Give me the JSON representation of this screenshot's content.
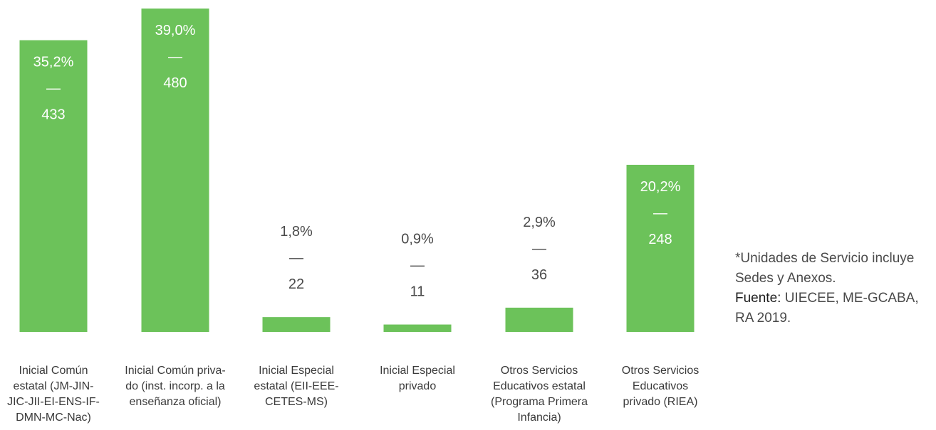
{
  "chart_data": {
    "type": "bar",
    "categories": [
      [
        "Inicial Común",
        "estatal (JM-JIN-",
        "JIC-JII-EI-ENS-IF-",
        "DMN-MC-Nac)"
      ],
      [
        "Inicial Común priva-",
        "do (inst. incorp. a la",
        "enseñanza oficial)"
      ],
      [
        "Inicial Especial",
        "estatal (EII-EEE-",
        "CETES-MS)"
      ],
      [
        "Inicial Especial",
        "privado"
      ],
      [
        "Otros Servicios",
        "Educativos estatal",
        "(Programa Primera",
        "Infancia)"
      ],
      [
        "Otros Servicios",
        "Educativos",
        "privado (RIEA)"
      ]
    ],
    "values": [
      433,
      480,
      22,
      11,
      36,
      248
    ],
    "percent_labels": [
      "35,2%",
      "39,0%",
      "1,8%",
      "0,9%",
      "2,9%",
      "20,2%"
    ],
    "value_labels": [
      "433",
      "480",
      "22",
      "11",
      "36",
      "248"
    ],
    "separator": "—",
    "ylim": [
      0,
      480
    ],
    "grid": false,
    "bar_color": "#6cc25a"
  },
  "note": {
    "line1": "*Unidades de Servicio incluye",
    "line2": "Sedes y Anexos.",
    "source_label": "Fuente:",
    "source_text": " UIECEE, ME-GCABA,",
    "line4": "RA 2019."
  }
}
